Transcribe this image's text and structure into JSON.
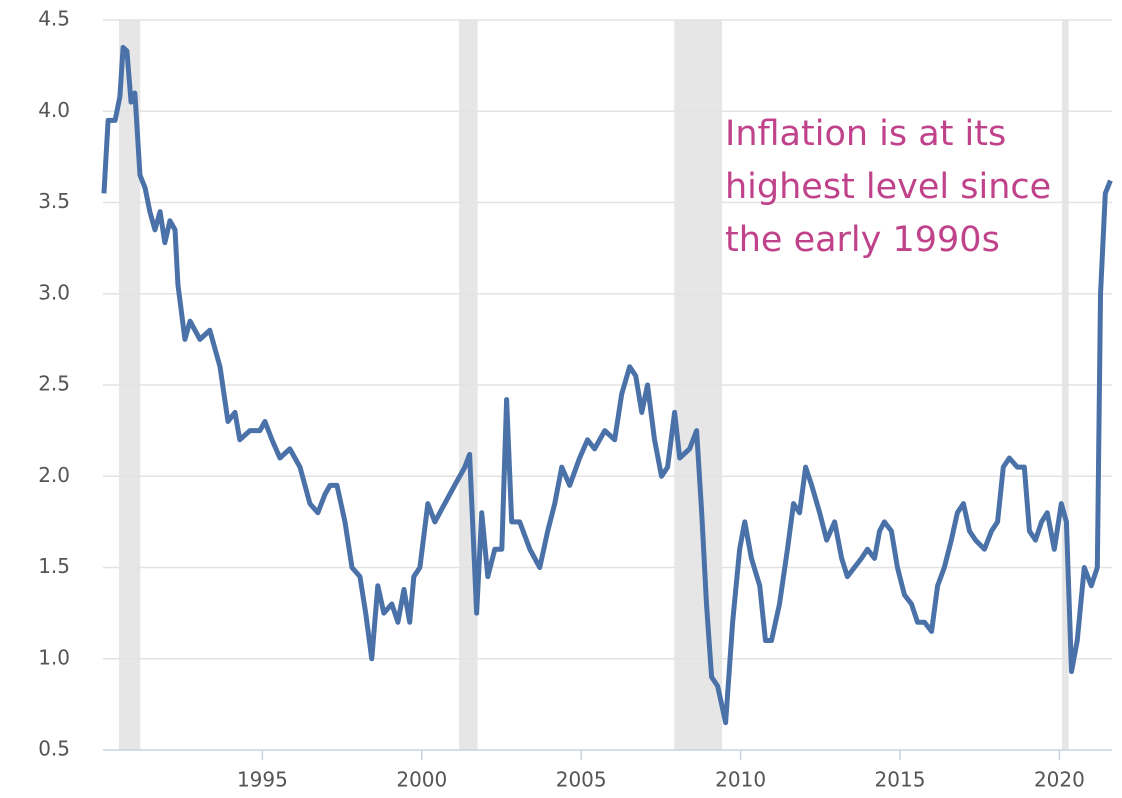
{
  "chart_data": {
    "type": "line",
    "x": [
      1990.03,
      1990.16,
      1990.38,
      1990.53,
      1990.63,
      1990.75,
      1990.88,
      1991.0,
      1991.16,
      1991.32,
      1991.47,
      1991.63,
      1991.79,
      1991.94,
      1992.1,
      1992.26,
      1992.35,
      1992.57,
      1992.73,
      1993.04,
      1993.35,
      1993.67,
      1993.92,
      1994.14,
      1994.29,
      1994.61,
      1994.92,
      1995.08,
      1995.3,
      1995.55,
      1995.86,
      1996.18,
      1996.49,
      1996.74,
      1996.96,
      1997.12,
      1997.34,
      1997.59,
      1997.81,
      1998.06,
      1998.24,
      1998.43,
      1998.62,
      1998.81,
      1999.06,
      1999.25,
      1999.44,
      1999.62,
      1999.75,
      1999.94,
      2000.19,
      2000.41,
      2000.72,
      2001.03,
      2001.35,
      2001.5,
      2001.72,
      2001.88,
      2002.07,
      2002.29,
      2002.51,
      2002.66,
      2002.82,
      2003.07,
      2003.39,
      2003.7,
      2003.95,
      2004.17,
      2004.39,
      2004.64,
      2004.95,
      2005.2,
      2005.42,
      2005.74,
      2006.05,
      2006.27,
      2006.52,
      2006.71,
      2006.9,
      2007.08,
      2007.3,
      2007.52,
      2007.71,
      2007.93,
      2008.09,
      2008.4,
      2008.62,
      2008.78,
      2008.93,
      2009.09,
      2009.28,
      2009.53,
      2009.75,
      2009.97,
      2010.13,
      2010.34,
      2010.6,
      2010.78,
      2010.97,
      2011.22,
      2011.47,
      2011.66,
      2011.85,
      2012.04,
      2012.23,
      2012.48,
      2012.7,
      2012.95,
      2013.17,
      2013.35,
      2013.57,
      2013.79,
      2013.98,
      2014.2,
      2014.36,
      2014.51,
      2014.73,
      2014.92,
      2015.14,
      2015.36,
      2015.55,
      2015.77,
      2015.99,
      2016.18,
      2016.39,
      2016.61,
      2016.8,
      2016.99,
      2017.18,
      2017.37,
      2017.65,
      2017.87,
      2018.06,
      2018.24,
      2018.43,
      2018.68,
      2018.9,
      2019.06,
      2019.25,
      2019.44,
      2019.62,
      2019.84,
      2020.06,
      2020.22,
      2020.38,
      2020.56,
      2020.78,
      2021.0,
      2021.19,
      2021.29,
      2021.44,
      2021.6
    ],
    "series": [
      {
        "color": "#4a72a8",
        "values": [
          3.55,
          3.95,
          3.95,
          4.08,
          4.35,
          4.33,
          4.05,
          4.1,
          3.65,
          3.58,
          3.45,
          3.35,
          3.45,
          3.28,
          3.4,
          3.35,
          3.05,
          2.75,
          2.85,
          2.75,
          2.8,
          2.6,
          2.3,
          2.35,
          2.2,
          2.25,
          2.25,
          2.3,
          2.2,
          2.1,
          2.15,
          2.05,
          1.85,
          1.8,
          1.9,
          1.95,
          1.95,
          1.75,
          1.5,
          1.45,
          1.25,
          1.0,
          1.4,
          1.25,
          1.3,
          1.2,
          1.38,
          1.2,
          1.45,
          1.5,
          1.85,
          1.75,
          1.85,
          1.95,
          2.05,
          2.12,
          1.25,
          1.8,
          1.45,
          1.6,
          1.6,
          2.42,
          1.75,
          1.75,
          1.6,
          1.5,
          1.7,
          1.85,
          2.05,
          1.95,
          2.1,
          2.2,
          2.15,
          2.25,
          2.2,
          2.45,
          2.6,
          2.55,
          2.35,
          2.5,
          2.2,
          2.0,
          2.05,
          2.35,
          2.1,
          2.15,
          2.25,
          1.8,
          1.3,
          0.9,
          0.85,
          0.65,
          1.2,
          1.6,
          1.75,
          1.55,
          1.4,
          1.1,
          1.1,
          1.3,
          1.6,
          1.85,
          1.8,
          2.05,
          1.95,
          1.8,
          1.65,
          1.75,
          1.55,
          1.45,
          1.5,
          1.55,
          1.6,
          1.55,
          1.7,
          1.75,
          1.7,
          1.5,
          1.35,
          1.3,
          1.2,
          1.2,
          1.15,
          1.4,
          1.5,
          1.65,
          1.8,
          1.85,
          1.7,
          1.65,
          1.6,
          1.7,
          1.75,
          2.05,
          2.1,
          2.05,
          2.05,
          1.7,
          1.65,
          1.75,
          1.8,
          1.6,
          1.85,
          1.75,
          0.93,
          1.1,
          1.5,
          1.4,
          1.5,
          3.0,
          3.55,
          3.62
        ]
      }
    ],
    "shaded_periods": [
      [
        1990.5,
        1991.17
      ],
      [
        2001.17,
        2001.75
      ],
      [
        2007.92,
        2009.42
      ],
      [
        2020.08,
        2020.29
      ]
    ],
    "shade_color": "#e6e6e6",
    "annotation": [
      "Inflation is at its",
      "highest level since",
      "the early 1990s"
    ],
    "annotation_color": "#c0428a",
    "xlim": [
      1990,
      2021.65
    ],
    "xticks": [
      1995,
      2000,
      2005,
      2010,
      2015,
      2020
    ],
    "ylim": [
      0.5,
      4.5
    ],
    "yticks": [
      0.5,
      {
        "value": 1,
        "label": "1.0"
      },
      1.5,
      {
        "value": 2,
        "label": "2.0"
      },
      2.5,
      {
        "value": 3,
        "label": "3.0"
      },
      3.5,
      {
        "value": 4,
        "label": "4.0"
      },
      4.5
    ],
    "grid": true
  }
}
